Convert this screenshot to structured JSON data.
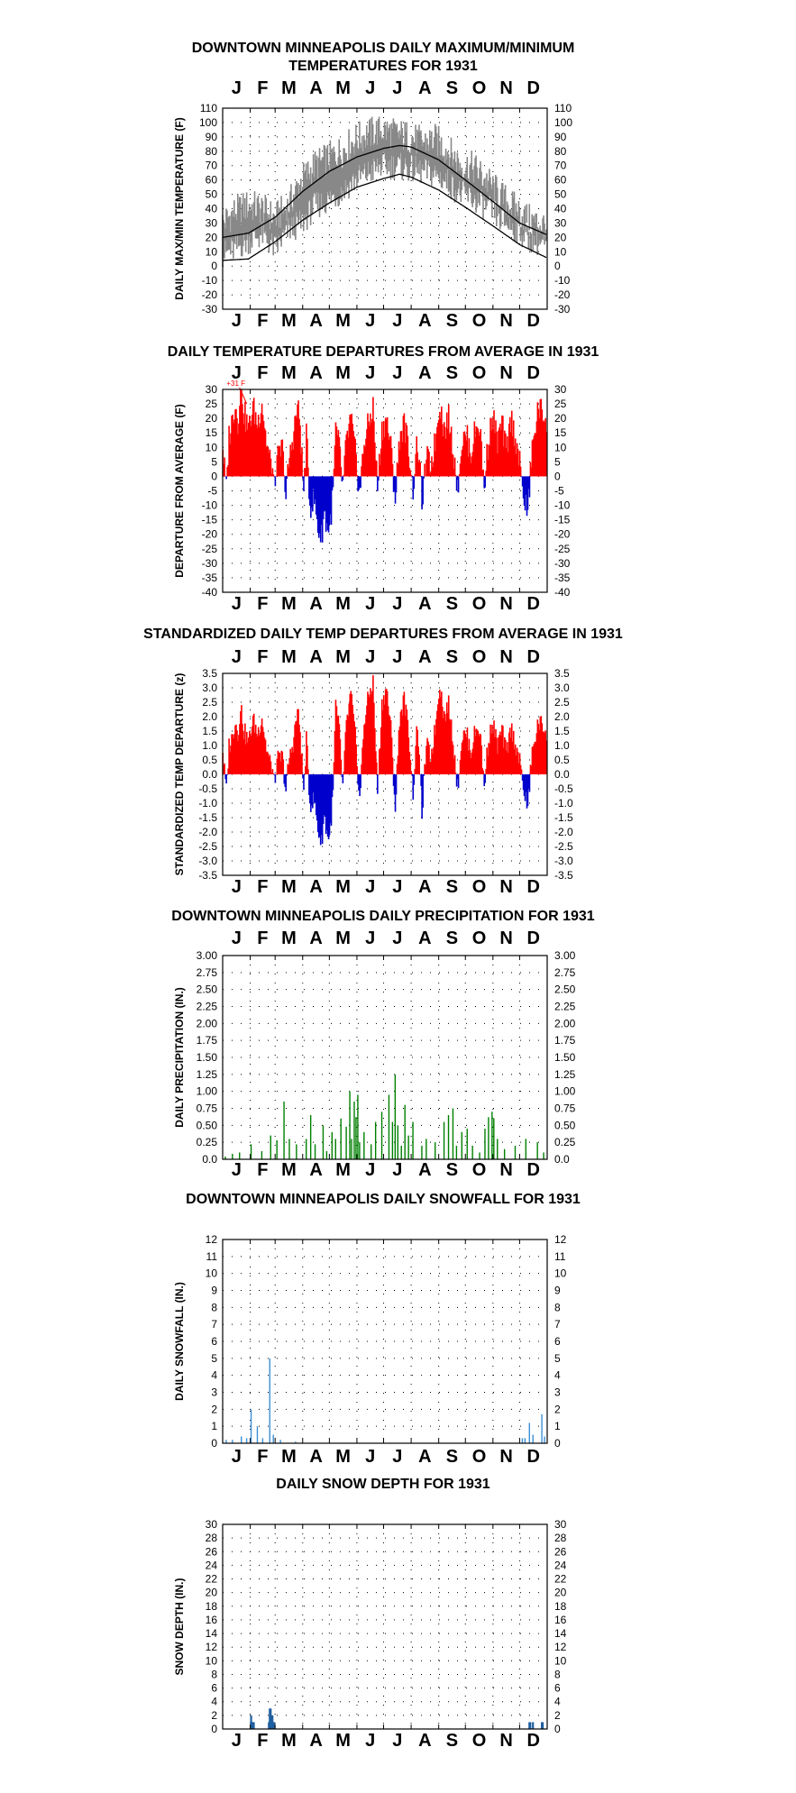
{
  "months": [
    "J",
    "F",
    "M",
    "A",
    "M",
    "J",
    "J",
    "A",
    "S",
    "O",
    "N",
    "D"
  ],
  "chart_data": [
    {
      "id": "temps",
      "type": "line",
      "title_lines": [
        "DOWNTOWN MINNEAPOLIS DAILY MAXIMUM/MINIMUM",
        "TEMPERATURES FOR 1931"
      ],
      "ylabel": "DAILY MAX/MIN TEMPERATURE (F)",
      "ylim": [
        -30,
        110
      ],
      "yticks": [
        110,
        100,
        90,
        80,
        70,
        60,
        50,
        40,
        30,
        20,
        10,
        0,
        -10,
        -20,
        -30
      ],
      "grid": true,
      "series": [],
      "x": "day of year 1931 (1-365)",
      "daily_max_min_anchors": [
        [
          1,
          30,
          8
        ],
        [
          15,
          38,
          12
        ],
        [
          30,
          42,
          18
        ],
        [
          45,
          40,
          22
        ],
        [
          60,
          33,
          12
        ],
        [
          75,
          42,
          25
        ],
        [
          90,
          60,
          30
        ],
        [
          105,
          70,
          42
        ],
        [
          120,
          75,
          46
        ],
        [
          135,
          80,
          52
        ],
        [
          150,
          88,
          60
        ],
        [
          165,
          92,
          65
        ],
        [
          180,
          95,
          70
        ],
        [
          195,
          92,
          70
        ],
        [
          210,
          90,
          68
        ],
        [
          225,
          86,
          66
        ],
        [
          240,
          88,
          64
        ],
        [
          255,
          80,
          58
        ],
        [
          270,
          70,
          50
        ],
        [
          285,
          68,
          46
        ],
        [
          300,
          58,
          40
        ],
        [
          315,
          48,
          32
        ],
        [
          330,
          40,
          26
        ],
        [
          345,
          32,
          20
        ],
        [
          365,
          28,
          14
        ]
      ],
      "normal_max_anchors": [
        [
          1,
          20
        ],
        [
          30,
          23
        ],
        [
          60,
          34
        ],
        [
          91,
          52
        ],
        [
          121,
          66
        ],
        [
          152,
          76
        ],
        [
          182,
          82
        ],
        [
          200,
          84
        ],
        [
          213,
          83
        ],
        [
          244,
          74
        ],
        [
          274,
          60
        ],
        [
          305,
          45
        ],
        [
          335,
          30
        ],
        [
          365,
          22
        ]
      ],
      "normal_min_anchors": [
        [
          1,
          4
        ],
        [
          30,
          5
        ],
        [
          60,
          17
        ],
        [
          91,
          32
        ],
        [
          121,
          44
        ],
        [
          152,
          55
        ],
        [
          182,
          61
        ],
        [
          200,
          64
        ],
        [
          213,
          62
        ],
        [
          244,
          53
        ],
        [
          274,
          41
        ],
        [
          305,
          28
        ],
        [
          335,
          15
        ],
        [
          365,
          6
        ]
      ]
    },
    {
      "id": "departures",
      "type": "bar",
      "title_lines": [
        "DAILY TEMPERATURE DEPARTURES FROM AVERAGE IN 1931"
      ],
      "ylabel": "DEPARTURE FROM AVERAGE (F)",
      "ylim": [
        -40,
        30
      ],
      "yticks": [
        30,
        25,
        20,
        15,
        10,
        5,
        0,
        -5,
        -10,
        -15,
        -20,
        -25,
        -30,
        -35,
        -40
      ],
      "grid": true,
      "annotation": "+31 F",
      "annotation_day": 22,
      "positive_color": "#ff0000",
      "negative_color": "#0000cc",
      "daily_anchors": [
        [
          1,
          10
        ],
        [
          5,
          -5
        ],
        [
          8,
          14
        ],
        [
          12,
          20
        ],
        [
          15,
          26
        ],
        [
          18,
          18
        ],
        [
          20,
          28
        ],
        [
          22,
          31
        ],
        [
          25,
          22
        ],
        [
          30,
          16
        ],
        [
          35,
          24
        ],
        [
          40,
          18
        ],
        [
          45,
          26
        ],
        [
          50,
          12
        ],
        [
          55,
          4
        ],
        [
          60,
          -2
        ],
        [
          63,
          6
        ],
        [
          68,
          10
        ],
        [
          72,
          -8
        ],
        [
          75,
          4
        ],
        [
          80,
          14
        ],
        [
          85,
          24
        ],
        [
          88,
          18
        ],
        [
          92,
          -6
        ],
        [
          95,
          14
        ],
        [
          99,
          -10
        ],
        [
          104,
          -8
        ],
        [
          108,
          -18
        ],
        [
          112,
          -21
        ],
        [
          115,
          -12
        ],
        [
          118,
          -17
        ],
        [
          121,
          -18
        ],
        [
          125,
          -6
        ],
        [
          128,
          16
        ],
        [
          132,
          10
        ],
        [
          136,
          -4
        ],
        [
          140,
          12
        ],
        [
          145,
          20
        ],
        [
          150,
          8
        ],
        [
          155,
          -6
        ],
        [
          160,
          12
        ],
        [
          165,
          18
        ],
        [
          170,
          24
        ],
        [
          175,
          -4
        ],
        [
          180,
          16
        ],
        [
          185,
          20
        ],
        [
          190,
          10
        ],
        [
          195,
          -8
        ],
        [
          200,
          14
        ],
        [
          205,
          18
        ],
        [
          210,
          10
        ],
        [
          215,
          -4
        ],
        [
          220,
          12
        ],
        [
          225,
          -8
        ],
        [
          230,
          6
        ],
        [
          235,
          4
        ],
        [
          240,
          12
        ],
        [
          245,
          26
        ],
        [
          250,
          16
        ],
        [
          255,
          20
        ],
        [
          260,
          10
        ],
        [
          265,
          -4
        ],
        [
          270,
          12
        ],
        [
          275,
          14
        ],
        [
          280,
          8
        ],
        [
          285,
          16
        ],
        [
          290,
          18
        ],
        [
          295,
          -4
        ],
        [
          300,
          14
        ],
        [
          305,
          20
        ],
        [
          310,
          12
        ],
        [
          315,
          18
        ],
        [
          320,
          8
        ],
        [
          325,
          20
        ],
        [
          330,
          14
        ],
        [
          335,
          4
        ],
        [
          340,
          -8
        ],
        [
          344,
          -13
        ],
        [
          348,
          6
        ],
        [
          352,
          16
        ],
        [
          356,
          24
        ],
        [
          360,
          22
        ],
        [
          365,
          20
        ]
      ]
    },
    {
      "id": "standardized",
      "type": "bar",
      "title_lines": [
        "STANDARDIZED DAILY TEMP DEPARTURES FROM AVERAGE IN 1931"
      ],
      "ylabel": "STANDARDIZED TEMP DEPARTURE (z)",
      "ylim": [
        -3.5,
        3.5
      ],
      "yticks": [
        3.5,
        3.0,
        2.5,
        2.0,
        1.5,
        1.0,
        0.5,
        0.0,
        -0.5,
        -1.0,
        -1.5,
        -2.0,
        -2.5,
        -3.0,
        -3.5
      ],
      "ytick_labels": [
        "3.5",
        "3.0",
        "2.5",
        "2.0",
        "1.5",
        "1.0",
        "0.5",
        "0.0",
        "-0.5",
        "-1.0",
        "-1.5",
        "-2.0",
        "-2.5",
        "-3.0",
        "-3.5"
      ],
      "grid": true,
      "positive_color": "#ff0000",
      "negative_color": "#0000cc",
      "daily_anchors": [
        [
          1,
          0.8
        ],
        [
          5,
          -0.6
        ],
        [
          8,
          1.0
        ],
        [
          12,
          1.3
        ],
        [
          15,
          1.9
        ],
        [
          18,
          1.4
        ],
        [
          20,
          2.0
        ],
        [
          22,
          2.2
        ],
        [
          25,
          1.5
        ],
        [
          30,
          1.1
        ],
        [
          35,
          1.9
        ],
        [
          40,
          1.4
        ],
        [
          45,
          2.0
        ],
        [
          50,
          0.9
        ],
        [
          55,
          0.3
        ],
        [
          60,
          -0.2
        ],
        [
          63,
          0.5
        ],
        [
          68,
          0.6
        ],
        [
          72,
          -0.6
        ],
        [
          75,
          0.4
        ],
        [
          80,
          1.1
        ],
        [
          85,
          2.2
        ],
        [
          88,
          1.5
        ],
        [
          92,
          -0.6
        ],
        [
          95,
          1.2
        ],
        [
          99,
          -1.0
        ],
        [
          104,
          -0.9
        ],
        [
          108,
          -1.9
        ],
        [
          112,
          -2.4
        ],
        [
          115,
          -1.4
        ],
        [
          118,
          -2.0
        ],
        [
          121,
          -2.2
        ],
        [
          125,
          -0.7
        ],
        [
          128,
          2.4
        ],
        [
          132,
          1.5
        ],
        [
          136,
          -0.5
        ],
        [
          140,
          1.7
        ],
        [
          145,
          2.8
        ],
        [
          150,
          1.3
        ],
        [
          155,
          -0.9
        ],
        [
          160,
          1.8
        ],
        [
          165,
          2.7
        ],
        [
          170,
          3.2
        ],
        [
          175,
          -0.6
        ],
        [
          180,
          2.4
        ],
        [
          185,
          3.0
        ],
        [
          190,
          1.6
        ],
        [
          195,
          -1.2
        ],
        [
          200,
          2.0
        ],
        [
          205,
          2.6
        ],
        [
          210,
          1.5
        ],
        [
          215,
          -0.6
        ],
        [
          220,
          1.8
        ],
        [
          225,
          -1.3
        ],
        [
          230,
          1.0
        ],
        [
          235,
          0.6
        ],
        [
          240,
          1.6
        ],
        [
          245,
          3.2
        ],
        [
          250,
          2.0
        ],
        [
          255,
          2.4
        ],
        [
          260,
          1.2
        ],
        [
          265,
          -0.5
        ],
        [
          270,
          1.3
        ],
        [
          275,
          1.4
        ],
        [
          280,
          0.8
        ],
        [
          285,
          1.5
        ],
        [
          290,
          1.6
        ],
        [
          295,
          -0.4
        ],
        [
          300,
          1.3
        ],
        [
          305,
          1.7
        ],
        [
          310,
          1.0
        ],
        [
          315,
          1.5
        ],
        [
          320,
          0.7
        ],
        [
          325,
          1.6
        ],
        [
          330,
          1.1
        ],
        [
          335,
          0.4
        ],
        [
          340,
          -0.6
        ],
        [
          344,
          -1.2
        ],
        [
          348,
          0.5
        ],
        [
          352,
          1.2
        ],
        [
          356,
          1.8
        ],
        [
          360,
          1.7
        ],
        [
          365,
          1.5
        ]
      ]
    },
    {
      "id": "precip",
      "type": "bar",
      "title_lines": [
        "DOWNTOWN MINNEAPOLIS DAILY PRECIPITATION FOR 1931"
      ],
      "ylabel": "DAILY PRECIPITATION (IN.)",
      "ylim": [
        0,
        3.0
      ],
      "yticks": [
        3.0,
        2.75,
        2.5,
        2.25,
        2.0,
        1.75,
        1.5,
        1.25,
        1.0,
        0.75,
        0.5,
        0.25,
        0.0
      ],
      "ytick_labels": [
        "3.00",
        "2.75",
        "2.50",
        "2.25",
        "2.00",
        "1.75",
        "1.50",
        "1.25",
        "1.00",
        "0.75",
        "0.50",
        "0.25",
        "0.0"
      ],
      "grid": true,
      "bar_color": "#008000",
      "days": [
        [
          4,
          0.04
        ],
        [
          12,
          0.08
        ],
        [
          20,
          0.1
        ],
        [
          33,
          0.22
        ],
        [
          45,
          0.12
        ],
        [
          55,
          0.35
        ],
        [
          62,
          0.28
        ],
        [
          70,
          0.85
        ],
        [
          76,
          0.3
        ],
        [
          84,
          0.22
        ],
        [
          95,
          0.3
        ],
        [
          100,
          0.65
        ],
        [
          105,
          0.22
        ],
        [
          114,
          0.5
        ],
        [
          118,
          0.12
        ],
        [
          124,
          0.4
        ],
        [
          128,
          0.3
        ],
        [
          134,
          0.6
        ],
        [
          140,
          0.48
        ],
        [
          144,
          1.0
        ],
        [
          146,
          0.3
        ],
        [
          149,
          0.85
        ],
        [
          151,
          0.62
        ],
        [
          153,
          0.95
        ],
        [
          155,
          0.25
        ],
        [
          160,
          0.4
        ],
        [
          168,
          0.22
        ],
        [
          173,
          0.55
        ],
        [
          180,
          0.7
        ],
        [
          188,
          0.95
        ],
        [
          192,
          0.55
        ],
        [
          195,
          1.25
        ],
        [
          198,
          0.5
        ],
        [
          202,
          0.2
        ],
        [
          206,
          0.8
        ],
        [
          210,
          0.35
        ],
        [
          215,
          0.55
        ],
        [
          225,
          0.2
        ],
        [
          230,
          0.3
        ],
        [
          240,
          0.25
        ],
        [
          250,
          0.55
        ],
        [
          255,
          0.65
        ],
        [
          260,
          0.75
        ],
        [
          264,
          0.2
        ],
        [
          270,
          0.4
        ],
        [
          276,
          0.45
        ],
        [
          282,
          0.2
        ],
        [
          290,
          0.1
        ],
        [
          296,
          0.45
        ],
        [
          300,
          0.62
        ],
        [
          304,
          0.7
        ],
        [
          306,
          0.6
        ],
        [
          310,
          0.3
        ],
        [
          318,
          0.15
        ],
        [
          330,
          0.2
        ],
        [
          342,
          0.3
        ],
        [
          355,
          0.25
        ],
        [
          362,
          0.1
        ]
      ]
    },
    {
      "id": "snowfall",
      "type": "bar",
      "title_lines": [
        "DOWNTOWN MINNEAPOLIS DAILY SNOWFALL FOR 1931"
      ],
      "ylabel": "DAILY SNOWFALL (IN.)",
      "ylim": [
        0,
        12
      ],
      "yticks": [
        12,
        11,
        10,
        9,
        8,
        7,
        6,
        5,
        4,
        3,
        2,
        1,
        0
      ],
      "grid": true,
      "bar_color": "#3d8fd6",
      "days": [
        [
          5,
          0.2
        ],
        [
          12,
          0.2
        ],
        [
          22,
          0.4
        ],
        [
          28,
          0.3
        ],
        [
          33,
          2.0
        ],
        [
          40,
          1.0
        ],
        [
          46,
          0.3
        ],
        [
          54,
          5.0
        ],
        [
          58,
          0.5
        ],
        [
          66,
          0.2
        ],
        [
          83,
          0.1
        ],
        [
          338,
          0.3
        ],
        [
          341,
          0.3
        ],
        [
          346,
          1.2
        ],
        [
          350,
          0.5
        ],
        [
          360,
          1.7
        ],
        [
          363,
          0.4
        ]
      ]
    },
    {
      "id": "snowdepth",
      "type": "area",
      "title_lines": [
        "DAILY SNOW DEPTH FOR 1931"
      ],
      "ylabel": "SNOW DEPTH (IN.)",
      "ylim": [
        0,
        30
      ],
      "yticks": [
        30,
        28,
        26,
        24,
        22,
        20,
        18,
        16,
        14,
        12,
        10,
        8,
        6,
        4,
        2,
        0
      ],
      "grid": true,
      "bar_color": "#1f5fa0",
      "days": [
        [
          33,
          2
        ],
        [
          34,
          1
        ],
        [
          35,
          1
        ],
        [
          36,
          1
        ],
        [
          53,
          1
        ],
        [
          54,
          3
        ],
        [
          55,
          3
        ],
        [
          56,
          2
        ],
        [
          57,
          2
        ],
        [
          58,
          1
        ],
        [
          59,
          1
        ],
        [
          346,
          1
        ],
        [
          347,
          1
        ],
        [
          350,
          1
        ],
        [
          360,
          1
        ],
        [
          361,
          1
        ]
      ]
    }
  ]
}
